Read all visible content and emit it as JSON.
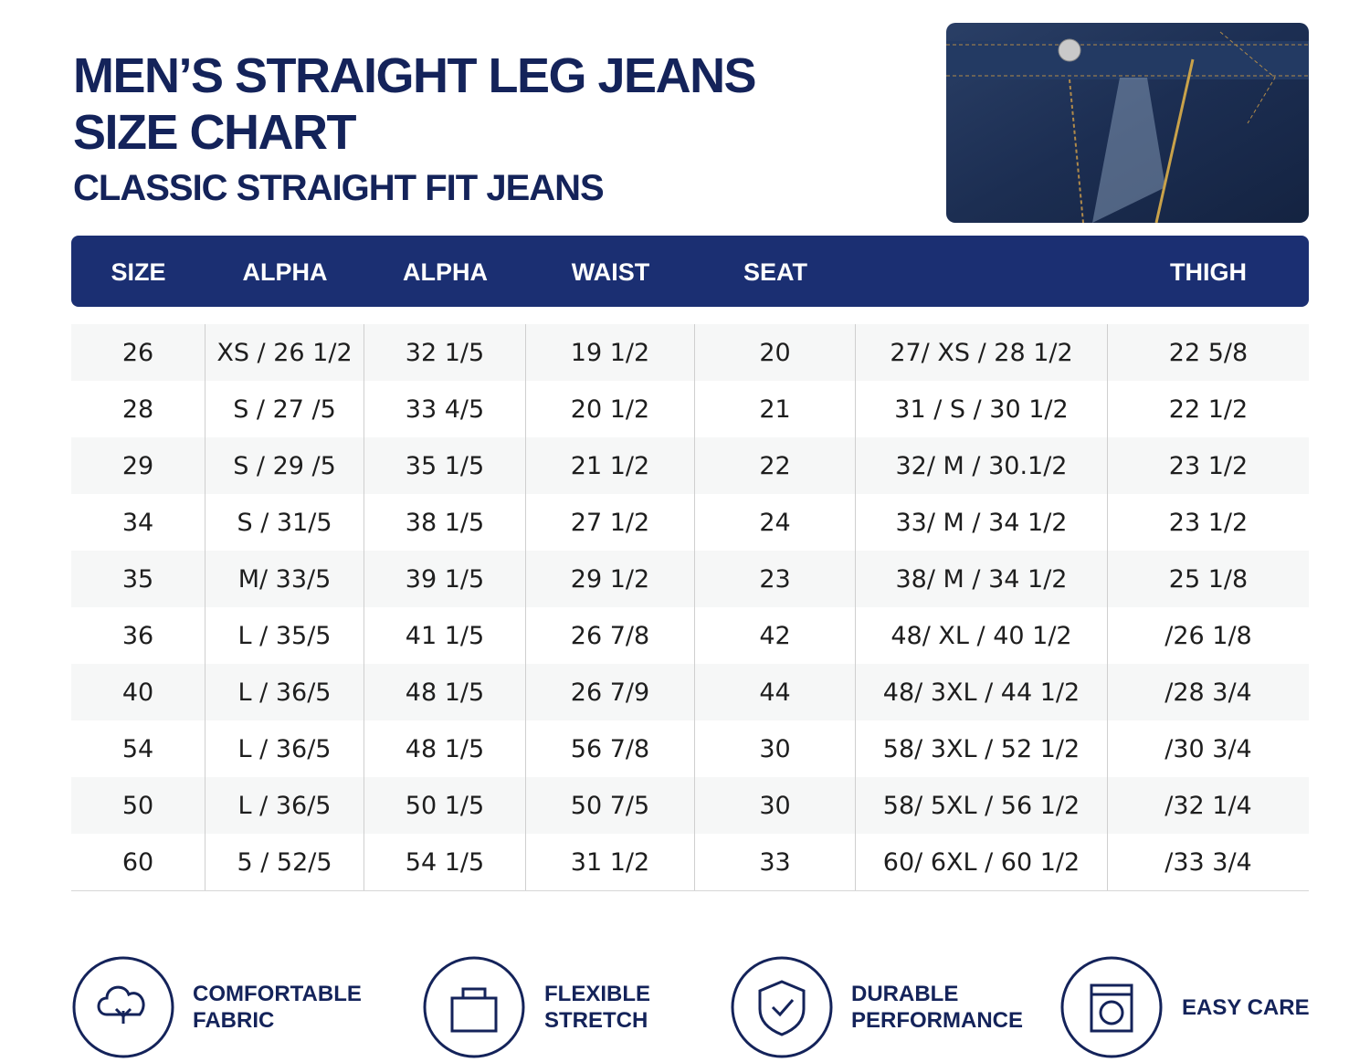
{
  "header": {
    "title_lines": [
      "MEN’S STRAIGHT LEG JEANS",
      "SIZE CHART"
    ],
    "subtitle": "CLASSIC STRAIGHT FIT JEANS"
  },
  "table": {
    "headers": [
      "SIZE",
      "ALPHA",
      "ALPHA",
      "WAIST",
      "SEAT",
      null,
      "THIGH"
    ],
    "rows": [
      [
        "26",
        "XS / 26 1/2",
        "32 1/5",
        "19 1/2",
        "20",
        "27/ XS / 28 1/2",
        "22 5/8"
      ],
      [
        "28",
        "S / 27 /5",
        "33 4/5",
        "20 1/2",
        "21",
        "31 / S / 30 1/2",
        "22 1/2"
      ],
      [
        "29",
        "S / 29 /5",
        "35 1/5",
        "21 1/2",
        "22",
        "32/ M / 30.1/2",
        "23 1/2"
      ],
      [
        "34",
        "S / 31/5",
        "38 1/5",
        "27 1/2",
        "24",
        "33/ M / 34 1/2",
        "23 1/2"
      ],
      [
        "35",
        "M/ 33/5",
        "39 1/5",
        "29 1/2",
        "23",
        "38/ M / 34 1/2",
        "25 1/8"
      ],
      [
        "36",
        "L / 35/5",
        "41 1/5",
        "26 7/8",
        "42",
        "48/ XL / 40 1/2",
        "/26 1/8"
      ],
      [
        "40",
        "L / 36/5",
        "48 1/5",
        "26 7/9",
        "44",
        "48/ 3XL / 44 1/2",
        "/28 3/4"
      ],
      [
        "54",
        "L / 36/5",
        "48 1/5",
        "56 7/8",
        "30",
        "58/ 3XL / 52 1/2",
        "/30 3/4"
      ],
      [
        "50",
        "L / 36/5",
        "50 1/5",
        "50 7/5",
        "30",
        "58/ 5XL / 56 1/2",
        "/32 1/4"
      ],
      [
        "60",
        "5 / 52/5",
        "54 1/5",
        "31 1/2",
        "33",
        "60/ 6XL / 60 1/2",
        "/33 3/4"
      ]
    ]
  },
  "features": [
    {
      "lines": [
        "COMFORTABLE",
        "FABRIC"
      ]
    },
    {
      "lines": [
        "FLEXIBLE",
        "STRETCH"
      ]
    },
    {
      "lines": [
        "DURABLE",
        "PERFORMANCE"
      ]
    },
    {
      "lines": [
        "EASY CARE"
      ]
    }
  ]
}
